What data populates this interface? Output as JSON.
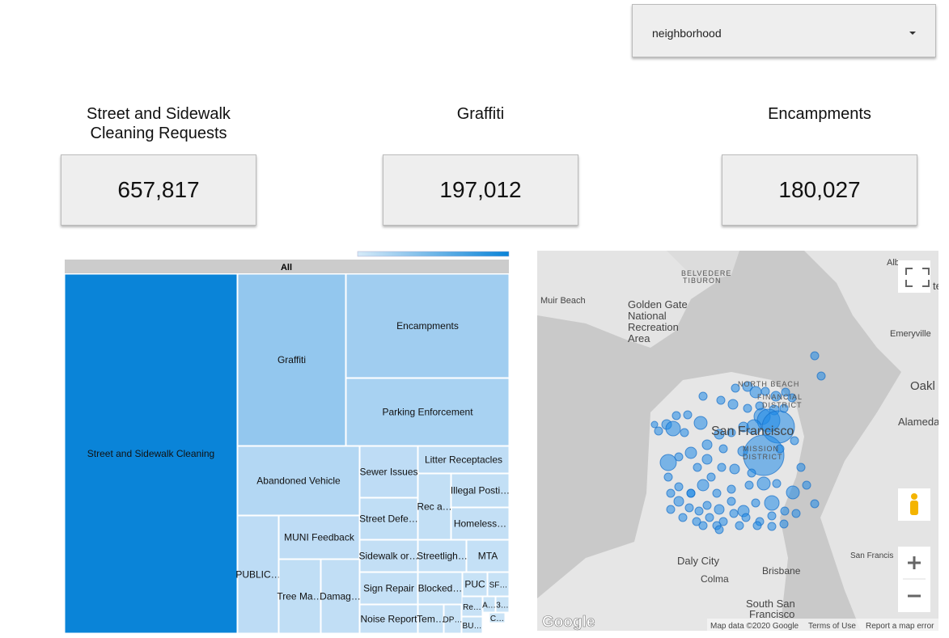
{
  "dropdown": {
    "label": "neighborhood"
  },
  "scorecards": [
    {
      "title": "Street and Sidewalk Cleaning Requests",
      "value": "657,817"
    },
    {
      "title": "Graffiti",
      "value": "197,012"
    },
    {
      "title": "Encampments",
      "value": "180,027"
    }
  ],
  "treemap": {
    "root": "All",
    "nodes": [
      {
        "label": "Street and Sidewalk Cleaning"
      },
      {
        "label": "Graffiti"
      },
      {
        "label": "Encampments"
      },
      {
        "label": "Parking Enforcement"
      },
      {
        "label": "Abandoned Vehicle"
      },
      {
        "label": "Sewer Issues"
      },
      {
        "label": "Litter Receptacles"
      },
      {
        "label": "Illegal Posti…"
      },
      {
        "label": "Rec a…"
      },
      {
        "label": "Homeless…"
      },
      {
        "label": "Street Defe…"
      },
      {
        "label": "MUNI Feedback"
      },
      {
        "label": "PUBLIC…"
      },
      {
        "label": "Tree Ma…"
      },
      {
        "label": "Damag…"
      },
      {
        "label": "Sidewalk or…"
      },
      {
        "label": "Streetligh…"
      },
      {
        "label": "MTA"
      },
      {
        "label": "Sign Repair"
      },
      {
        "label": "Blocked…"
      },
      {
        "label": "PUC"
      },
      {
        "label": "SF…"
      },
      {
        "label": "Noise Report"
      },
      {
        "label": "Tem…"
      },
      {
        "label": "DP…"
      },
      {
        "label": "Re…"
      },
      {
        "label": "BU…"
      },
      {
        "label": "A…"
      },
      {
        "label": "3…"
      },
      {
        "label": "C…"
      }
    ]
  },
  "map": {
    "labels": [
      "BELVEDERE",
      "TIBURON",
      "Muir Beach",
      "Golden Gate",
      "National",
      "Recreation",
      "Area",
      "Emeryville",
      "Oakl",
      "Alameda",
      "NORTH BEACH",
      "FINANCIAL",
      "DISTRICT",
      "San Francisco",
      "MISSION",
      "DISTRICT",
      "Daly City",
      "Colma",
      "Brisbane",
      "South San",
      "Francisco",
      "San Francis",
      "Alb",
      "te"
    ],
    "attribution": {
      "logo": "Google",
      "data": "Map data ©2020 Google",
      "terms": "Terms of Use",
      "report": "Report a map error"
    }
  }
}
